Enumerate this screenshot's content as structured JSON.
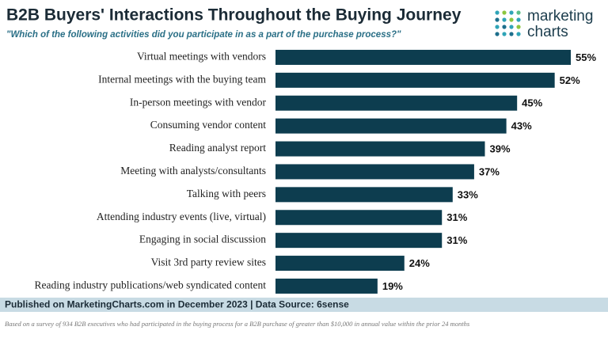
{
  "chart_data": {
    "type": "hbar",
    "title": "B2B Buyers' Interactions Throughout the Buying Journey",
    "subtitle": "\"Which of the following activities did you participate in as a part of the purchase process?\"",
    "categories": [
      "Virtual meetings with vendors",
      "Internal meetings with the buying team",
      "In-person meetings with vendor",
      "Consuming vendor content",
      "Reading analyst report",
      "Meeting with analysts/consultants",
      "Talking with peers",
      "Attending industry events (live, virtual)",
      "Engaging in social discussion",
      "Visit 3rd party review sites",
      "Reading industry publications/web syndicated content"
    ],
    "values": [
      55,
      52,
      45,
      43,
      39,
      37,
      33,
      31,
      31,
      24,
      19
    ],
    "value_labels": [
      "55%",
      "52%",
      "45%",
      "43%",
      "39%",
      "37%",
      "33%",
      "31%",
      "31%",
      "24%",
      "19%"
    ],
    "color": "#0d3d4f",
    "source": "Published on MarketingCharts.com in December 2023 | Data Source: 6sense",
    "note": "Based on a survey of 934 B2B executives who had participated in the buying process for a B2B purchase of greater than $10,000 in annual value within the prior 24 months"
  },
  "logo": {
    "line1": "marketing",
    "line2": "charts"
  }
}
